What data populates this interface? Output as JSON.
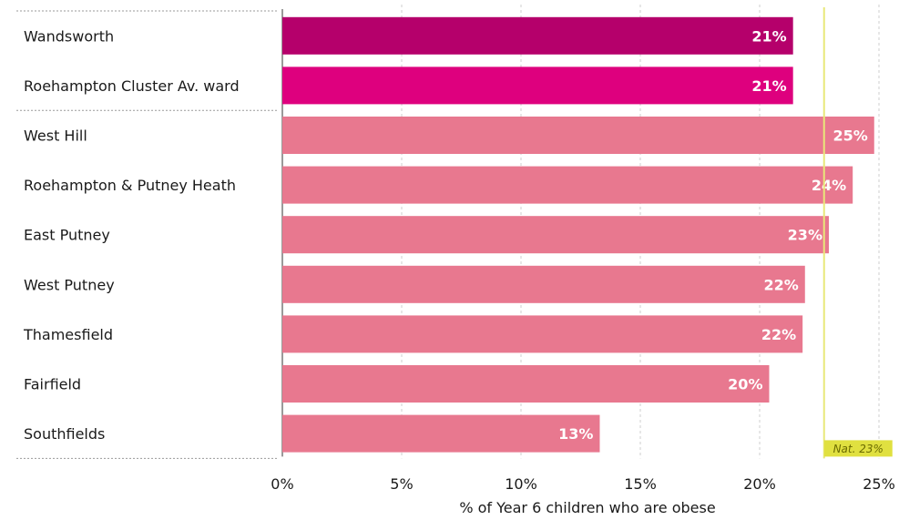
{
  "chart_data": {
    "type": "bar",
    "orientation": "horizontal",
    "categories": [
      "Wandsworth",
      "Roehampton Cluster Av. ward",
      "West Hill",
      "Roehampton & Putney Heath",
      "East Putney",
      "West Putney",
      "Thamesfield",
      "Fairfield",
      "Southfields"
    ],
    "values": [
      21.4,
      21.4,
      24.8,
      23.9,
      22.9,
      21.9,
      21.8,
      20.4,
      13.3
    ],
    "value_labels": [
      "21%",
      "21%",
      "25%",
      "24%",
      "23%",
      "22%",
      "22%",
      "20%",
      "13%"
    ],
    "bar_colors": [
      "#b5006b",
      "#de007e",
      "#e8788f",
      "#e8788f",
      "#e8788f",
      "#e8788f",
      "#e8788f",
      "#e8788f",
      "#e8788f"
    ],
    "xlabel": "% of Year 6 children who are obese",
    "xlim": [
      0,
      25
    ],
    "x_ticks": [
      0,
      5,
      10,
      15,
      20,
      25
    ],
    "x_tick_labels": [
      "0%",
      "5%",
      "10%",
      "15%",
      "20%",
      "25%"
    ],
    "grid": "vertical dashed",
    "reference_line": {
      "value": 22.7,
      "label": "Nat. 23%",
      "color": "#e8e87a",
      "label_bg": "#e0e040"
    }
  }
}
